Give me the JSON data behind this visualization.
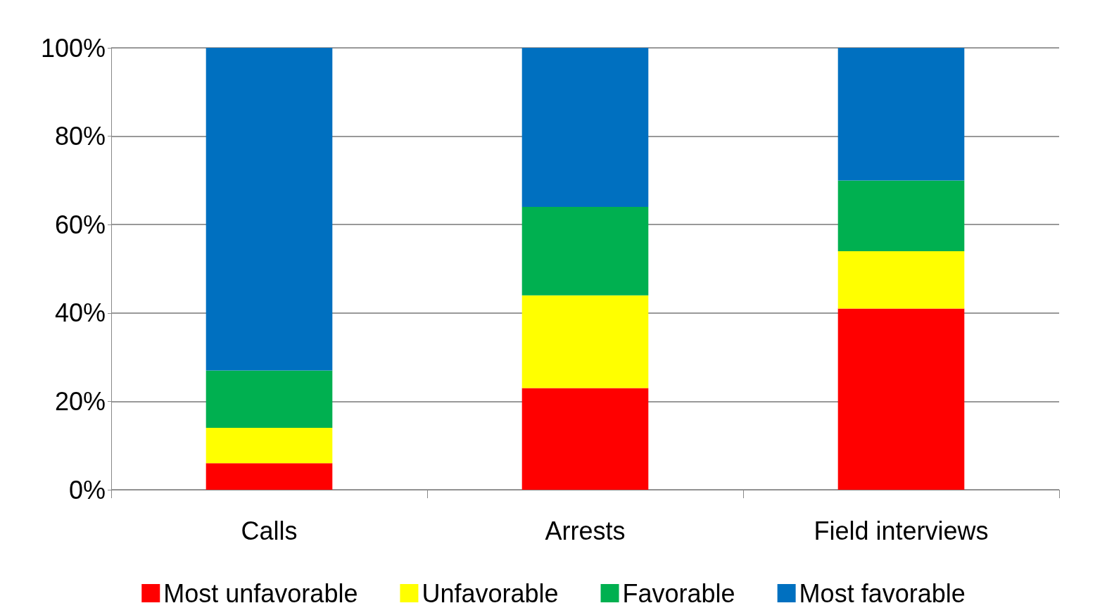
{
  "chart_data": {
    "type": "bar",
    "stacked": true,
    "categories": [
      "Calls",
      "Arrests",
      "Field interviews"
    ],
    "series": [
      {
        "name": "Most unfavorable",
        "color": "#ff0000",
        "values": [
          6,
          23,
          41
        ]
      },
      {
        "name": "Unfavorable",
        "color": "#ffff00",
        "values": [
          8,
          21,
          13
        ]
      },
      {
        "name": "Favorable",
        "color": "#00b050",
        "values": [
          13,
          20,
          16
        ]
      },
      {
        "name": "Most favorable",
        "color": "#0070c0",
        "values": [
          73,
          36,
          30
        ]
      }
    ],
    "ylim": [
      0,
      100
    ],
    "yticks": [
      {
        "value": 0,
        "label": "0%"
      },
      {
        "value": 20,
        "label": "20%"
      },
      {
        "value": 40,
        "label": "40%"
      },
      {
        "value": 60,
        "label": "60%"
      },
      {
        "value": 80,
        "label": "80%"
      },
      {
        "value": 100,
        "label": "100%"
      }
    ],
    "grid": "y",
    "legend": "bottom"
  }
}
